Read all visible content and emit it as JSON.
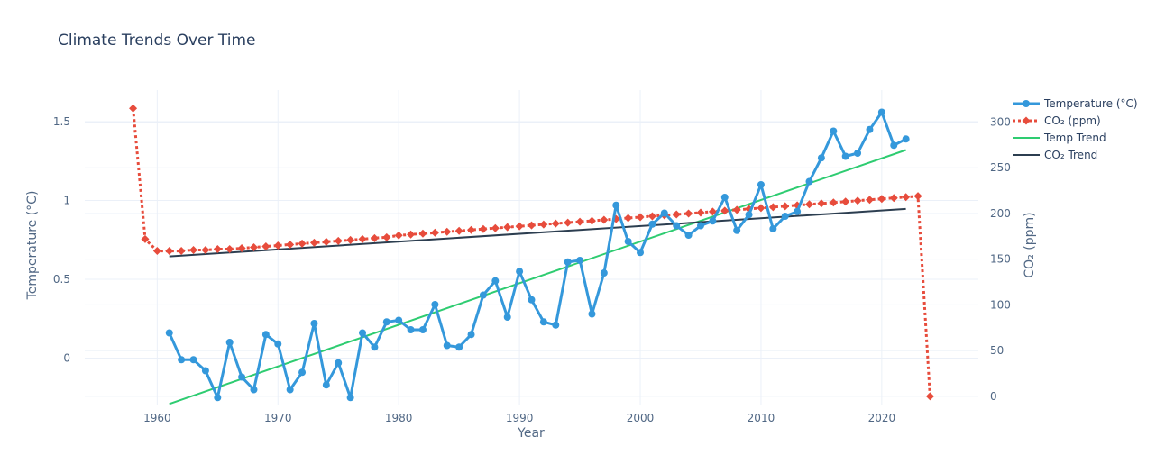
{
  "chart_data": {
    "type": "line",
    "title": "Climate Trends Over Time",
    "xlabel": "Year",
    "ylabel_left": "Temperature (°C)",
    "ylabel_right": "CO₂ (ppm)",
    "xlim": [
      1954,
      2028
    ],
    "ylim_left": [
      -0.3,
      1.7
    ],
    "ylim_right": [
      -10,
      335
    ],
    "x_ticks": [
      1960,
      1970,
      1980,
      1990,
      2000,
      2010,
      2020
    ],
    "y_left_ticks": [
      {
        "v": 0,
        "label": "0"
      },
      {
        "v": 0.5,
        "label": "0.5"
      },
      {
        "v": 1,
        "label": "1"
      },
      {
        "v": 1.5,
        "label": "1.5"
      }
    ],
    "y_right_ticks": [
      {
        "v": 0,
        "label": "0"
      },
      {
        "v": 50,
        "label": "50"
      },
      {
        "v": 100,
        "label": "100"
      },
      {
        "v": 150,
        "label": "150"
      },
      {
        "v": 200,
        "label": "200"
      },
      {
        "v": 250,
        "label": "250"
      },
      {
        "v": 300,
        "label": "300"
      }
    ],
    "grid": true,
    "legend_position": "top-right",
    "series": [
      {
        "name": "Temperature (°C)",
        "axis": "left",
        "color": "#3498db",
        "style": "solid",
        "marker": "circle",
        "x": [
          1961,
          1962,
          1963,
          1964,
          1965,
          1966,
          1967,
          1968,
          1969,
          1970,
          1971,
          1972,
          1973,
          1974,
          1975,
          1976,
          1977,
          1978,
          1979,
          1980,
          1981,
          1982,
          1983,
          1984,
          1985,
          1986,
          1987,
          1988,
          1989,
          1990,
          1991,
          1992,
          1993,
          1994,
          1995,
          1996,
          1997,
          1998,
          1999,
          2000,
          2001,
          2002,
          2003,
          2004,
          2005,
          2006,
          2007,
          2008,
          2009,
          2010,
          2011,
          2012,
          2013,
          2014,
          2015,
          2016,
          2017,
          2018,
          2019,
          2020,
          2021,
          2022
        ],
        "y": [
          0.16,
          -0.01,
          -0.01,
          -0.08,
          -0.25,
          0.1,
          -0.12,
          -0.2,
          0.15,
          0.09,
          -0.2,
          -0.09,
          0.22,
          -0.17,
          -0.03,
          -0.25,
          0.16,
          0.07,
          0.23,
          0.24,
          0.18,
          0.18,
          0.34,
          0.08,
          0.07,
          0.15,
          0.4,
          0.49,
          0.26,
          0.55,
          0.37,
          0.23,
          0.21,
          0.61,
          0.62,
          0.28,
          0.54,
          0.97,
          0.74,
          0.67,
          0.85,
          0.92,
          0.84,
          0.78,
          0.84,
          0.87,
          1.02,
          0.81,
          0.91,
          1.1,
          0.82,
          0.9,
          0.93,
          1.12,
          1.27,
          1.44,
          1.28,
          1.3,
          1.45,
          1.56,
          1.35,
          1.39
        ]
      },
      {
        "name": "CO₂ (ppm)",
        "axis": "right",
        "color": "#e74c3c",
        "style": "dotted",
        "marker": "diamond",
        "x": [
          1958,
          1959,
          1960,
          1961,
          1962,
          1963,
          1964,
          1965,
          1966,
          1967,
          1968,
          1969,
          1970,
          1971,
          1972,
          1973,
          1974,
          1975,
          1976,
          1977,
          1978,
          1979,
          1980,
          1981,
          1982,
          1983,
          1984,
          1985,
          1986,
          1987,
          1988,
          1989,
          1990,
          1991,
          1992,
          1993,
          1994,
          1995,
          1996,
          1997,
          1998,
          1999,
          2000,
          2001,
          2002,
          2003,
          2004,
          2005,
          2006,
          2007,
          2008,
          2009,
          2010,
          2011,
          2012,
          2013,
          2014,
          2015,
          2016,
          2017,
          2018,
          2019,
          2020,
          2021,
          2022,
          2023,
          2024
        ],
        "y": [
          315,
          172,
          159,
          159,
          159,
          160,
          160,
          161,
          161,
          162,
          163,
          164,
          165,
          166,
          167,
          168,
          169,
          170,
          171,
          172,
          173,
          174,
          176,
          177,
          178,
          179,
          180,
          181,
          182,
          183,
          184,
          185,
          186,
          187,
          188,
          189,
          190,
          191,
          192,
          193,
          194,
          195,
          196,
          197,
          198,
          199,
          200,
          201,
          202,
          203,
          204,
          205,
          206,
          207,
          208,
          209,
          210,
          211,
          212,
          213,
          214,
          215,
          216,
          217,
          218,
          219,
          0
        ]
      },
      {
        "name": "Temp Trend",
        "axis": "left",
        "color": "#2ecc71",
        "style": "solid",
        "marker": "none",
        "x": [
          1961,
          2022
        ],
        "y": [
          -0.29,
          1.32
        ]
      },
      {
        "name": "CO₂ Trend",
        "axis": "right",
        "color": "#2c3e50",
        "style": "solid",
        "marker": "none",
        "x": [
          1961,
          2022
        ],
        "y": [
          153,
          205
        ]
      }
    ]
  }
}
